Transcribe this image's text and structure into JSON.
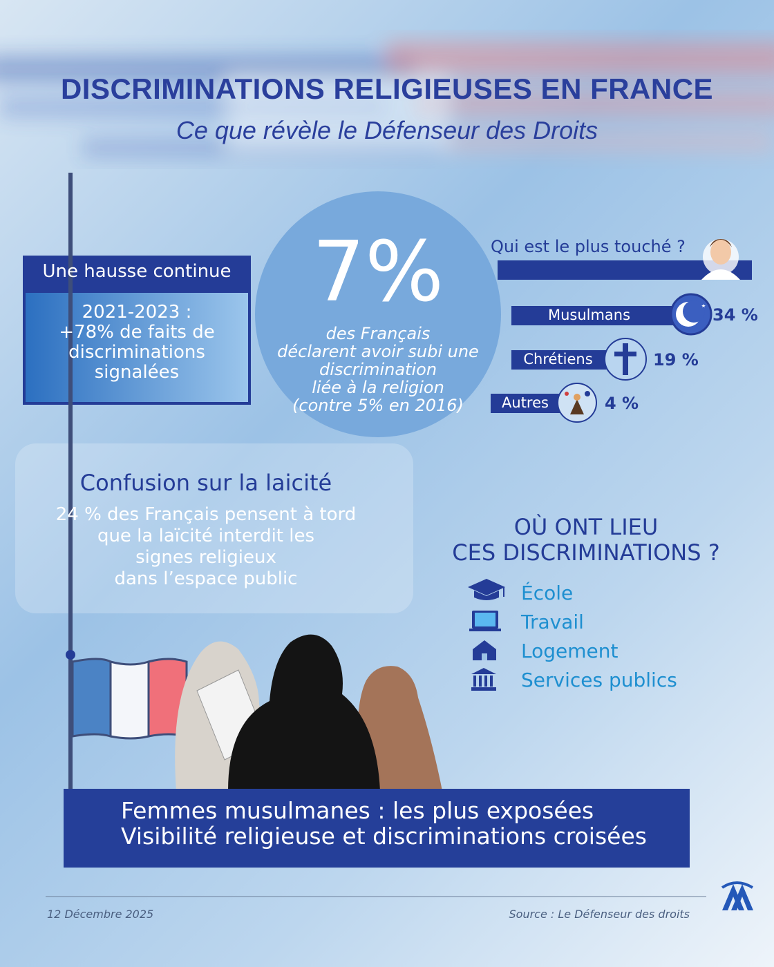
{
  "header": {
    "title": "DISCRIMINATIONS RELIGIEUSES EN FRANCE",
    "subtitle": "Ce que révèle le Défenseur des Droits"
  },
  "hausse": {
    "title": "Une hausse continue",
    "text": [
      "2021-2023 :",
      "+78% de faits de",
      "discriminations",
      "signalées"
    ]
  },
  "big_stat": {
    "value": "7%",
    "text": [
      "des Français",
      "déclarent avoir subi une",
      "discrimination",
      "liée à la religion",
      "(contre 5% en 2016)"
    ]
  },
  "touche": {
    "title": "Qui est le plus touché ?",
    "groups": [
      {
        "label": "Musulmans",
        "value": "34 %"
      },
      {
        "label": "Chrétiens",
        "value": "19 %"
      },
      {
        "label": "Autres",
        "value": "4 %"
      }
    ]
  },
  "laicite": {
    "title": "Confusion sur la laicité",
    "text": [
      "24 % des Français pensent à tord",
      "que la laïcité interdit les",
      "signes religieux",
      "dans l’espace public"
    ]
  },
  "lieux": {
    "title": [
      "OÙ ONT LIEU",
      "CES DISCRIMINATIONS ?"
    ],
    "items": [
      "École",
      "Travail",
      "Logement",
      "Services publics"
    ]
  },
  "banner": [
    "Femmes musulmanes : les plus exposées",
    "Visibilité religieuse et discriminations croisées"
  ],
  "footer": {
    "date": "12 Décembre 2025",
    "source": "Source : Le Défenseur des droits"
  }
}
